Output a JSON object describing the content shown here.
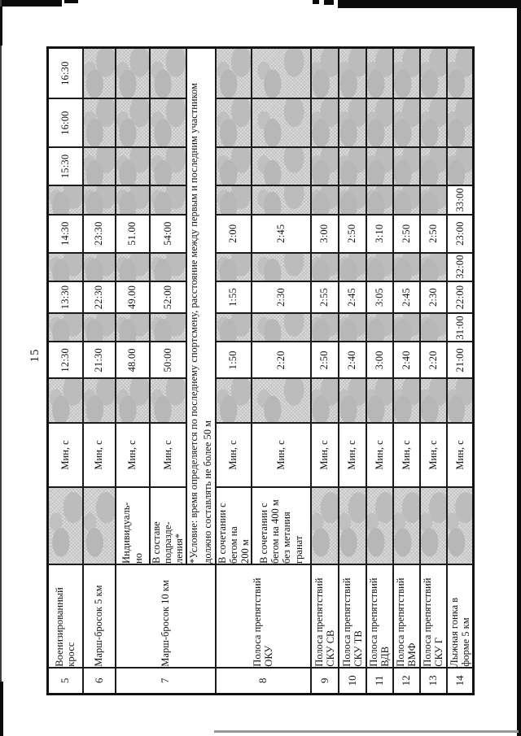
{
  "page": {
    "number": "15"
  },
  "colors": {
    "ink": "#151515",
    "shade_fill": "#c9c9c9",
    "paper": "#ffffff"
  },
  "table": {
    "unit_label": "Мин, с",
    "footnote": "*Условие: время определяется по последнему спортсмену, расстояние между первым и последним участником\nдолжно составлять не более 50 м",
    "rows": [
      {
        "num": "5",
        "name": "Военизированный\nкросс",
        "subrows": [
          {
            "sub": "",
            "cells": [
              "",
              "12:30",
              "",
              "13:30",
              "",
              "14:30",
              "",
              "15:30",
              "16:00",
              "16:30"
            ]
          }
        ]
      },
      {
        "num": "6",
        "name": "Марш-бросок 5 км",
        "subrows": [
          {
            "sub": "",
            "cells": [
              "",
              "21:30",
              "",
              "22:30",
              "",
              "23:30",
              "",
              "",
              "",
              ""
            ]
          }
        ]
      },
      {
        "num": "7",
        "name": "Марш-бросок 10 км",
        "has_footnote": true,
        "subrows": [
          {
            "sub": "Индивидуаль-\nно",
            "cells": [
              "",
              "48.00",
              "",
              "49.00",
              "",
              "51.00",
              "",
              "",
              "",
              ""
            ]
          },
          {
            "sub": "В составе\nподразде-\nления*",
            "cells": [
              "",
              "50:00",
              "",
              "52:00",
              "",
              "54:00",
              "",
              "",
              "",
              ""
            ]
          }
        ]
      },
      {
        "num": "8",
        "name": "Полоса препятствий\nОКУ",
        "subrows": [
          {
            "sub": "В сочетании с\nбегом на\n200 м",
            "cells": [
              "",
              "1:50",
              "",
              "1:55",
              "",
              "2:00",
              "",
              "",
              "",
              ""
            ]
          },
          {
            "sub": "В сочетании с\nбегом на 400 м\nбез метания\nгранат",
            "cells": [
              "",
              "2:20",
              "",
              "2:30",
              "",
              "2:45",
              "",
              "",
              "",
              ""
            ]
          }
        ]
      },
      {
        "num": "9",
        "name": "Полоса препятствий\nСКУ СВ",
        "subrows": [
          {
            "sub": "",
            "cells": [
              "",
              "2:50",
              "",
              "2:55",
              "",
              "3:00",
              "",
              "",
              "",
              ""
            ]
          }
        ]
      },
      {
        "num": "10",
        "name": "Полоса препятствий\nСКУ ТВ",
        "subrows": [
          {
            "sub": "",
            "cells": [
              "",
              "2:40",
              "",
              "2:45",
              "",
              "2:50",
              "",
              "",
              "",
              ""
            ]
          }
        ]
      },
      {
        "num": "11",
        "name": "Полоса препятствий\nВДВ",
        "subrows": [
          {
            "sub": "",
            "cells": [
              "",
              "3:00",
              "",
              "3:05",
              "",
              "3:10",
              "",
              "",
              "",
              ""
            ]
          }
        ]
      },
      {
        "num": "12",
        "name": "Полоса препятствий\nВМФ",
        "subrows": [
          {
            "sub": "",
            "cells": [
              "",
              "2:40",
              "",
              "2:45",
              "",
              "2:50",
              "",
              "",
              "",
              ""
            ]
          }
        ]
      },
      {
        "num": "13",
        "name": "Полоса препятствий\nСКУ Г",
        "subrows": [
          {
            "sub": "",
            "cells": [
              "",
              "2:20",
              "",
              "2:30",
              "",
              "2:50",
              "",
              "",
              "",
              ""
            ]
          }
        ]
      },
      {
        "num": "14",
        "name": "Лыжная гонка в\nформе 5 км",
        "subrows": [
          {
            "sub": "",
            "cells": [
              "",
              "21:00",
              "31:00",
              "22:00",
              "32:00",
              "23:00",
              "33:00",
              "",
              "",
              ""
            ]
          }
        ]
      }
    ]
  }
}
